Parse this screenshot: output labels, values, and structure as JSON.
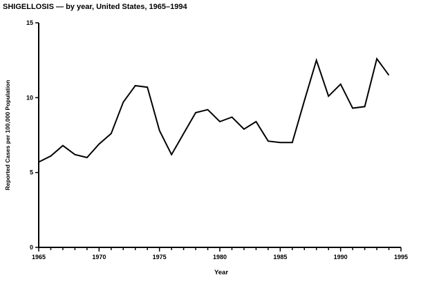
{
  "page": {
    "background": "#ffffff",
    "foreground": "#000000"
  },
  "chart_data": {
    "type": "line",
    "title": "SHIGELLOSIS — by year, United States, 1965–1994",
    "xlabel": "Year",
    "ylabel": "Reported Cases per 100,000 Population",
    "x": [
      1965,
      1966,
      1967,
      1968,
      1969,
      1970,
      1971,
      1972,
      1973,
      1974,
      1975,
      1976,
      1977,
      1978,
      1979,
      1980,
      1981,
      1982,
      1983,
      1984,
      1985,
      1986,
      1987,
      1988,
      1989,
      1990,
      1991,
      1992,
      1993,
      1994
    ],
    "values": [
      5.7,
      6.1,
      6.8,
      6.2,
      6.0,
      6.9,
      7.6,
      9.7,
      10.8,
      10.7,
      7.8,
      6.2,
      7.6,
      9.0,
      9.2,
      8.4,
      8.7,
      7.9,
      8.4,
      7.1,
      7.0,
      7.0,
      9.8,
      12.5,
      10.1,
      10.9,
      9.3,
      9.4,
      12.6,
      11.5
    ],
    "xlim": [
      1965,
      1995
    ],
    "ylim": [
      0,
      15
    ],
    "xticks": [
      1965,
      1970,
      1975,
      1980,
      1985,
      1990,
      1995
    ],
    "yticks": [
      0,
      5,
      10,
      15
    ],
    "x_minor_tick_interval": 1,
    "grid": false,
    "legend": false,
    "line_color": "#000000"
  }
}
